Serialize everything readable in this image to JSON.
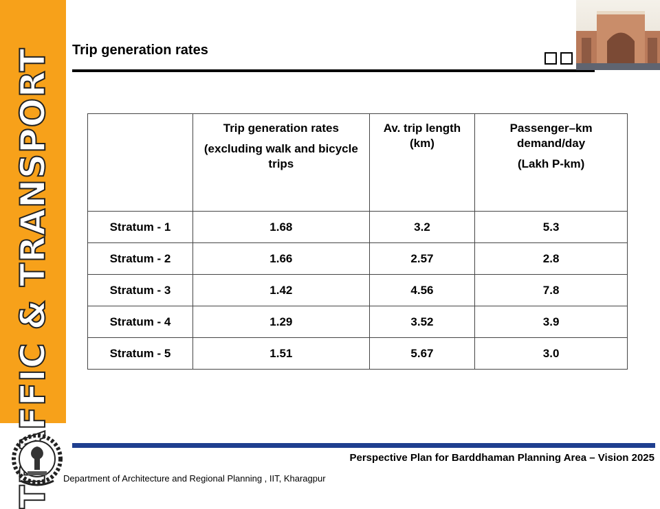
{
  "side_label": "TRAFFIC & TRANSPORT",
  "header": {
    "title": "Trip generation rates"
  },
  "table": {
    "header": [
      {
        "lines": [
          "Trip generation rates",
          "(excluding walk and bicycle trips"
        ]
      },
      {
        "lines": [
          "Av. trip length (km)"
        ]
      },
      {
        "lines": [
          "Passenger–km demand/day",
          "(Lakh P-km)"
        ]
      }
    ],
    "rows": [
      [
        "Stratum - 1",
        "1.68",
        "3.2",
        "5.3"
      ],
      [
        "Stratum - 2",
        "1.66",
        "2.57",
        "2.8"
      ],
      [
        "Stratum - 3",
        "1.42",
        "4.56",
        "7.8"
      ],
      [
        "Stratum - 4",
        "1.29",
        "3.52",
        "3.9"
      ],
      [
        "Stratum - 5",
        "1.51",
        "5.67",
        "3.0"
      ]
    ]
  },
  "footer": {
    "plan": "Perspective Plan for Barddhaman Planning Area – Vision 2025",
    "department": "Department of Architecture and Regional Planning , IIT, Kharagpur"
  }
}
